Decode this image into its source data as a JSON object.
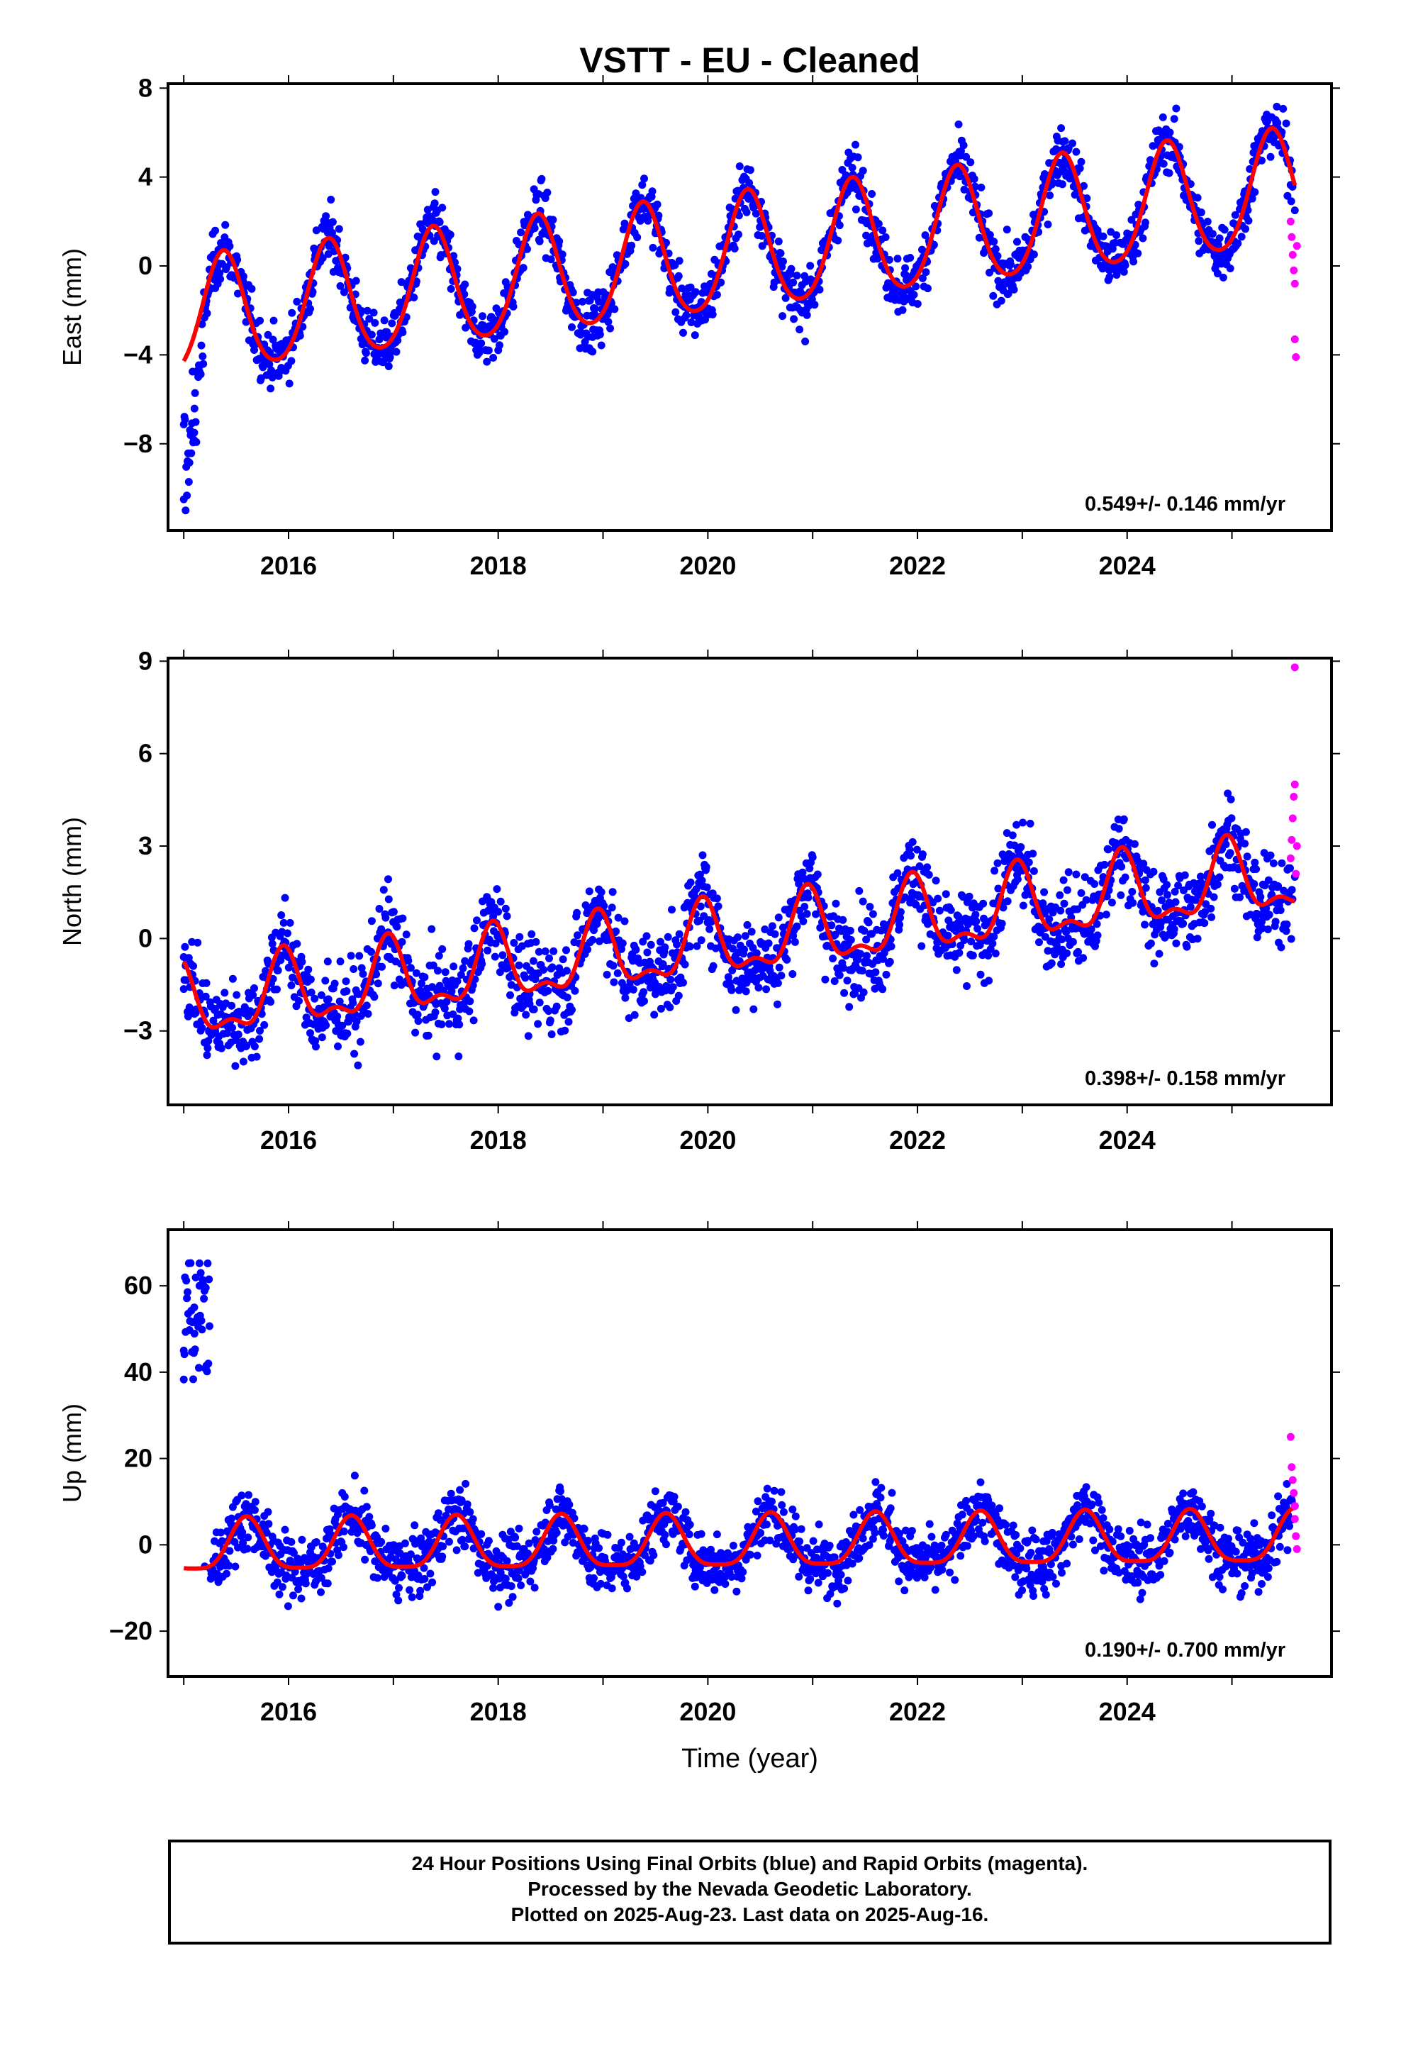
{
  "chart_data": [
    {
      "type": "scatter",
      "title": "VSTT  - EU - Cleaned",
      "ylabel": "East (mm)",
      "xlabel": "",
      "xlim": [
        2014.85,
        2025.95
      ],
      "ylim": [
        -11.9,
        8.2
      ],
      "yticks": [
        -8,
        -4,
        0,
        4,
        8
      ],
      "ytick_labels": [
        "−8",
        "−4",
        "0",
        "4",
        "8"
      ],
      "xticks": [
        2016,
        2018,
        2020,
        2022,
        2024
      ],
      "xtick_labels": [
        "2016",
        "2018",
        "2020",
        "2022",
        "2024"
      ],
      "rate_label": "0.549+/- 0.146 mm/yr",
      "trend": {
        "rate": 0.549,
        "offset_at_2015": -2.4,
        "annual_amp": 2.6,
        "annual_phase_year": 2015.38,
        "semiannual_amp": 0.3
      },
      "series": [
        {
          "name": "Final Orbits",
          "color": "#0000ff",
          "approx_noise_sd": 0.9,
          "sample_points": [
            [
              2015.0,
              -10.5
            ],
            [
              2015.1,
              -7.5
            ],
            [
              2015.3,
              -1.0
            ],
            [
              2015.4,
              0.8
            ],
            [
              2015.9,
              -4.8
            ],
            [
              2016.4,
              1.3
            ],
            [
              2016.9,
              -4.3
            ],
            [
              2017.4,
              1.8
            ],
            [
              2017.9,
              -3.8
            ],
            [
              2018.4,
              2.3
            ],
            [
              2018.9,
              -3.2
            ],
            [
              2019.4,
              2.9
            ],
            [
              2019.9,
              -2.6
            ],
            [
              2020.4,
              3.4
            ],
            [
              2020.9,
              -2.1
            ],
            [
              2021.4,
              4.0
            ],
            [
              2021.9,
              -1.5
            ],
            [
              2022.4,
              4.5
            ],
            [
              2022.9,
              -1.0
            ],
            [
              2023.4,
              5.1
            ],
            [
              2023.9,
              -0.4
            ],
            [
              2024.4,
              5.6
            ],
            [
              2024.9,
              0.1
            ],
            [
              2025.4,
              6.2
            ],
            [
              2025.6,
              2.5
            ]
          ]
        },
        {
          "name": "Rapid Orbits",
          "color": "#ff00ff",
          "points": [
            [
              2025.56,
              2.0
            ],
            [
              2025.57,
              1.3
            ],
            [
              2025.58,
              0.5
            ],
            [
              2025.59,
              -0.2
            ],
            [
              2025.6,
              -0.8
            ],
            [
              2025.6,
              -3.3
            ],
            [
              2025.61,
              -4.1
            ],
            [
              2025.62,
              0.9
            ]
          ]
        }
      ]
    },
    {
      "type": "scatter",
      "title": "",
      "ylabel": "North (mm)",
      "xlabel": "",
      "xlim": [
        2014.85,
        2025.95
      ],
      "ylim": [
        -5.4,
        9.1
      ],
      "yticks": [
        -3,
        0,
        3,
        6,
        9
      ],
      "ytick_labels": [
        "−3",
        "0",
        "3",
        "6",
        "9"
      ],
      "xticks": [
        2016,
        2018,
        2020,
        2022,
        2024
      ],
      "xtick_labels": [
        "2016",
        "2018",
        "2020",
        "2022",
        "2024"
      ],
      "rate_label": "0.398+/- 0.158 mm/yr",
      "trend": {
        "rate": 0.398,
        "offset_at_2015": -2.2,
        "annual_amp": 1.1,
        "annual_phase_year": 2015.95,
        "semiannual_amp": 0.5
      },
      "series": [
        {
          "name": "Final Orbits",
          "color": "#0000ff",
          "approx_noise_sd": 1.0,
          "sample_points": [
            [
              2015.0,
              -0.6
            ],
            [
              2015.3,
              -3.0
            ],
            [
              2015.95,
              -0.2
            ],
            [
              2016.3,
              -2.5
            ],
            [
              2016.95,
              0.2
            ],
            [
              2017.3,
              -2.1
            ],
            [
              2017.95,
              0.6
            ],
            [
              2018.3,
              -1.8
            ],
            [
              2018.95,
              1.0
            ],
            [
              2019.3,
              -1.3
            ],
            [
              2019.95,
              1.4
            ],
            [
              2020.3,
              -0.9
            ],
            [
              2020.95,
              1.8
            ],
            [
              2021.3,
              -0.5
            ],
            [
              2021.95,
              2.2
            ],
            [
              2022.3,
              -0.2
            ],
            [
              2022.95,
              2.6
            ],
            [
              2023.3,
              0.2
            ],
            [
              2023.95,
              3.0
            ],
            [
              2024.3,
              0.6
            ],
            [
              2024.95,
              3.4
            ],
            [
              2025.3,
              1.0
            ],
            [
              2025.6,
              2.0
            ]
          ]
        },
        {
          "name": "Rapid Orbits",
          "color": "#ff00ff",
          "points": [
            [
              2025.56,
              2.6
            ],
            [
              2025.57,
              3.2
            ],
            [
              2025.58,
              3.9
            ],
            [
              2025.59,
              4.6
            ],
            [
              2025.6,
              5.0
            ],
            [
              2025.61,
              2.1
            ],
            [
              2025.6,
              8.8
            ],
            [
              2025.62,
              3.0
            ]
          ]
        }
      ]
    },
    {
      "type": "scatter",
      "title": "",
      "ylabel": "Up (mm)",
      "xlabel": "Time (year)",
      "xlim": [
        2014.85,
        2025.95
      ],
      "ylim": [
        -30.5,
        73
      ],
      "yticks": [
        -20,
        0,
        20,
        40,
        60
      ],
      "ytick_labels": [
        "−20",
        "0",
        "20",
        "40",
        "60"
      ],
      "xticks": [
        2016,
        2018,
        2020,
        2022,
        2024
      ],
      "xtick_labels": [
        "2016",
        "2018",
        "2020",
        "2022",
        "2024"
      ],
      "rate_label": "0.190+/- 0.700 mm/yr",
      "trend": {
        "rate": 0.19,
        "offset_at_2015": -1.0,
        "annual_amp": 6.0,
        "annual_phase_year": 2015.6,
        "semiannual_amp": 1.5
      },
      "series": [
        {
          "name": "Final Orbits",
          "color": "#0000ff",
          "approx_noise_sd": 5.0,
          "sample_points": [
            [
              2015.0,
              45
            ],
            [
              2015.1,
              55
            ],
            [
              2015.15,
              60
            ],
            [
              2015.2,
              -5
            ],
            [
              2015.6,
              8
            ],
            [
              2016.2,
              -6
            ],
            [
              2016.6,
              8
            ],
            [
              2017.2,
              -6
            ],
            [
              2017.6,
              8
            ],
            [
              2018.2,
              -6
            ],
            [
              2018.6,
              8
            ],
            [
              2019.2,
              -5
            ],
            [
              2019.6,
              8
            ],
            [
              2020.2,
              -4
            ],
            [
              2020.6,
              8
            ],
            [
              2021.2,
              -5
            ],
            [
              2021.6,
              8
            ],
            [
              2022.2,
              -5
            ],
            [
              2022.6,
              9
            ],
            [
              2023.2,
              -5
            ],
            [
              2023.6,
              9
            ],
            [
              2024.2,
              -4
            ],
            [
              2024.6,
              9
            ],
            [
              2025.2,
              -4
            ],
            [
              2025.6,
              9
            ]
          ]
        },
        {
          "name": "Rapid Orbits",
          "color": "#ff00ff",
          "points": [
            [
              2025.56,
              25
            ],
            [
              2025.57,
              18
            ],
            [
              2025.58,
              15
            ],
            [
              2025.59,
              12
            ],
            [
              2025.6,
              9
            ],
            [
              2025.6,
              6
            ],
            [
              2025.61,
              2
            ],
            [
              2025.62,
              -1
            ]
          ]
        }
      ]
    }
  ],
  "footer": {
    "line1": "24 Hour Positions Using Final Orbits (blue) and Rapid Orbits (magenta).",
    "line2": "Processed by the Nevada Geodetic Laboratory.",
    "line3": "Plotted on 2025-Aug-23. Last data on 2025-Aug-16."
  },
  "colors": {
    "final_orbits": "#0000ff",
    "rapid_orbits": "#ff00ff",
    "model_fit": "#ff0000",
    "axis": "#000000"
  }
}
